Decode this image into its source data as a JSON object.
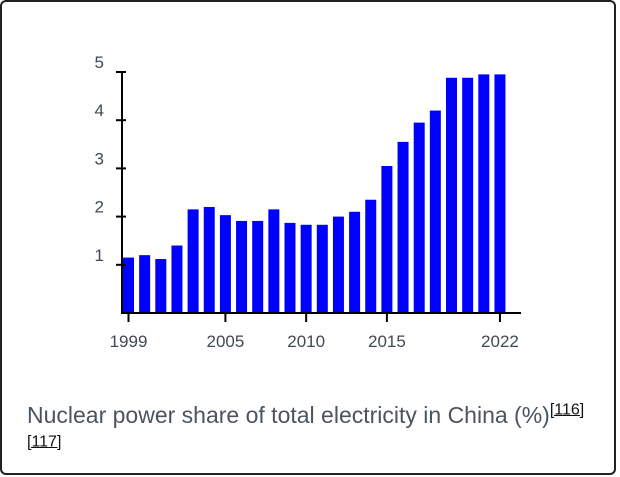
{
  "chart_data": {
    "type": "bar",
    "title": "",
    "xlabel": "",
    "ylabel": "",
    "categories": [
      "1999",
      "2000",
      "2001",
      "2002",
      "2003",
      "2004",
      "2005",
      "2006",
      "2007",
      "2008",
      "2009",
      "2010",
      "2011",
      "2012",
      "2013",
      "2014",
      "2015",
      "2016",
      "2017",
      "2018",
      "2019",
      "2020",
      "2021",
      "2022"
    ],
    "values": [
      1.15,
      1.2,
      1.12,
      1.4,
      2.15,
      2.2,
      2.03,
      1.91,
      1.91,
      2.15,
      1.87,
      1.83,
      1.83,
      2.0,
      2.1,
      2.35,
      3.05,
      3.55,
      3.95,
      4.2,
      4.88,
      4.88,
      4.95,
      4.95
    ],
    "ylim": [
      0,
      5
    ],
    "y_ticks": [
      1,
      2,
      3,
      4,
      5
    ],
    "x_tick_labels": [
      "1999",
      "2005",
      "2010",
      "2015",
      "2022"
    ],
    "bar_color": "#0000ff",
    "grid": false
  },
  "caption": {
    "text": "Nuclear power share of total electricity in China (%)",
    "refs": [
      "[116]",
      "[117]"
    ]
  }
}
